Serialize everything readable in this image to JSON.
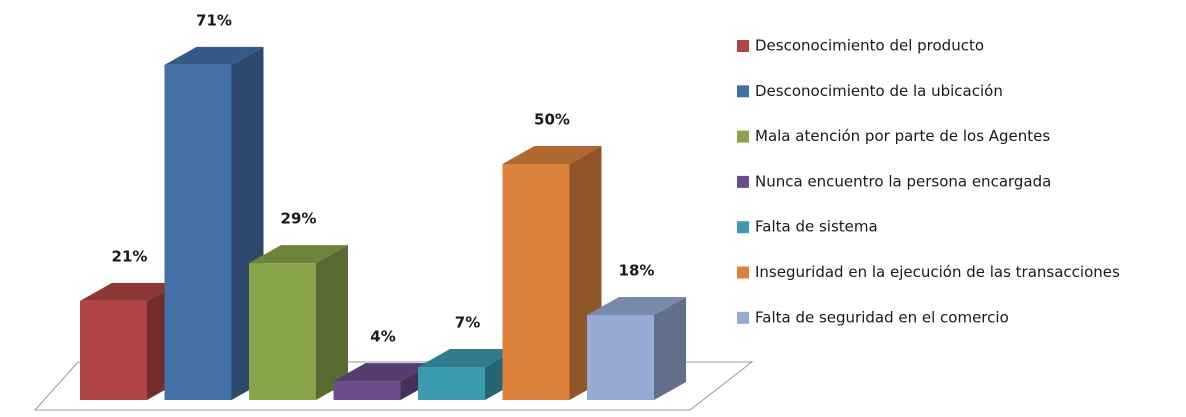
{
  "chart_data": {
    "type": "bar3d",
    "categories": [
      "Desconocimiento del producto",
      "Desconocimiento de la ubicación",
      "Mala atención por parte de los Agentes",
      "Nunca encuentro la persona encargada",
      "Falta de sistema",
      "Inseguridad en la ejecución de las transacciones",
      "Falta de seguridad en el comercio"
    ],
    "values": [
      21,
      71,
      29,
      4,
      7,
      50,
      18
    ],
    "value_labels": [
      "21%",
      "71%",
      "29%",
      "4%",
      "7%",
      "50%",
      "18%"
    ],
    "colors": [
      "#b04543",
      "#4370a7",
      "#88a54a",
      "#6b4c8c",
      "#3b9bb0",
      "#dc823d",
      "#96abd4"
    ],
    "legend": "right"
  }
}
